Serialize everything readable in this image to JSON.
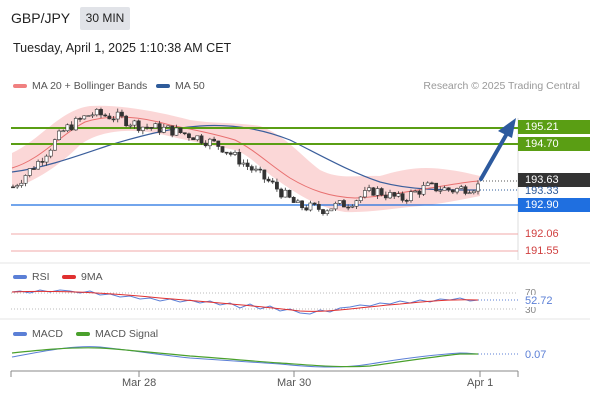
{
  "header": {
    "symbol": "GBP/JPY",
    "timeframe": "30 MIN",
    "timestamp": "Tuesday, April 1, 2025 1:10:38 AM CET"
  },
  "legend": {
    "ma20": {
      "label": "MA 20 + Bollinger Bands",
      "color": "#f08080"
    },
    "ma50": {
      "label": "MA 50",
      "color": "#2e5b9a"
    },
    "credit": "Research © 2025 Trading Central"
  },
  "price_levels": [
    {
      "label": "195.21",
      "value": 195.21,
      "kind": "resistance",
      "color": "#5a9e14"
    },
    {
      "label": "194.70",
      "value": 194.7,
      "kind": "resistance",
      "color": "#5a9e14"
    },
    {
      "label": "193.63",
      "value": 193.63,
      "kind": "last-price",
      "color": "#333333"
    },
    {
      "label": "193.33",
      "value": 193.33,
      "kind": "ma50",
      "color": "#2e5b9a"
    },
    {
      "label": "192.90",
      "value": 192.9,
      "kind": "pivot",
      "color": "#1f6fe0"
    },
    {
      "label": "192.06",
      "value": 192.06,
      "kind": "support",
      "color": "#d04040"
    },
    {
      "label": "191.55",
      "value": 191.55,
      "kind": "support",
      "color": "#d04040"
    }
  ],
  "rsi_panel": {
    "rsi_label": "RSI",
    "ma_label": "9MA",
    "rsi_color": "#5b7fd6",
    "ma_color": "#e03030",
    "level_70": "70",
    "level_30": "30",
    "value_label": "52.72"
  },
  "macd_panel": {
    "macd_label": "MACD",
    "signal_label": "MACD Signal",
    "macd_color": "#5b7fd6",
    "signal_color": "#4aa02c",
    "value_label": "0.07"
  },
  "x_axis": {
    "ticks": [
      "Mar 28",
      "Mar 30",
      "Apr 1"
    ]
  },
  "chart_data": {
    "type": "candlestick",
    "price_axis_range": [
      191.3,
      196.8
    ],
    "close_path": [
      193.6,
      194.4,
      195.4,
      195.9,
      195.8,
      195.5,
      195.4,
      195.2,
      194.9,
      194.3,
      193.7,
      193.0,
      192.9,
      193.1,
      193.5,
      193.2,
      193.6,
      193.5,
      193.63
    ],
    "ma20_path": [
      193.7,
      194.1,
      195.0,
      195.5,
      195.6,
      195.4,
      195.3,
      195.1,
      194.6,
      194.1,
      193.7,
      193.3,
      193.0,
      193.2,
      193.5,
      193.5
    ],
    "ma50_path": [
      193.3,
      193.6,
      194.0,
      194.6,
      195.0,
      195.2,
      195.2,
      194.8,
      194.2,
      193.7,
      193.4,
      193.3,
      193.33
    ],
    "rsi_last": 52.72,
    "macd_last": 0.07
  }
}
